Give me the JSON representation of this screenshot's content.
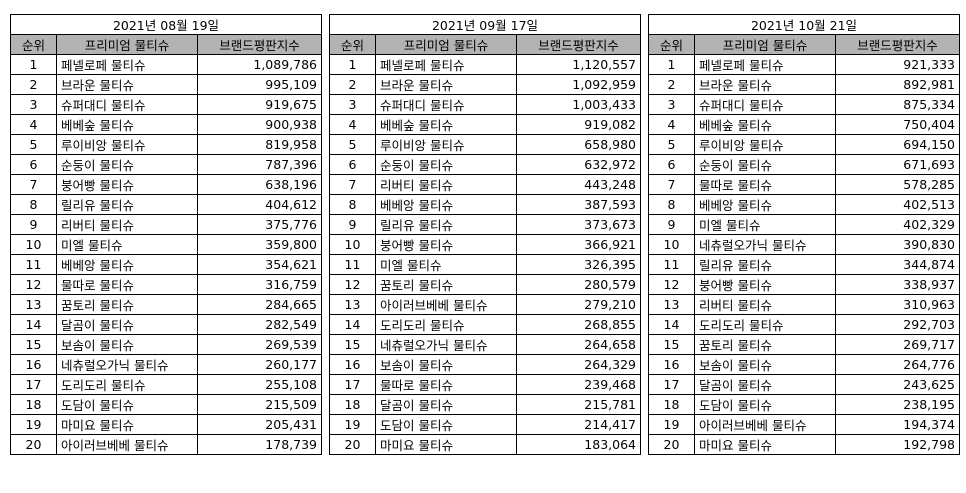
{
  "headers": {
    "rank": "순위",
    "name": "프리미엄 물티슈",
    "score": "브랜드평판지수"
  },
  "tables": [
    {
      "title": "2021년 08월 19일",
      "rows": [
        {
          "rank": "1",
          "name": "페넬로페 물티슈",
          "score": "1,089,786"
        },
        {
          "rank": "2",
          "name": "브라운 물티슈",
          "score": "995,109"
        },
        {
          "rank": "3",
          "name": "슈퍼대디 물티슈",
          "score": "919,675"
        },
        {
          "rank": "4",
          "name": "베베숲 물티슈",
          "score": "900,938"
        },
        {
          "rank": "5",
          "name": "루이비앙 물티슈",
          "score": "819,958"
        },
        {
          "rank": "6",
          "name": "순둥이 물티슈",
          "score": "787,396"
        },
        {
          "rank": "7",
          "name": "붕어빵 물티슈",
          "score": "638,196"
        },
        {
          "rank": "8",
          "name": "릴리유 물티슈",
          "score": "404,612"
        },
        {
          "rank": "9",
          "name": "리버티 물티슈",
          "score": "375,776"
        },
        {
          "rank": "10",
          "name": "미엘 물티슈",
          "score": "359,800"
        },
        {
          "rank": "11",
          "name": "베베앙 물티슈",
          "score": "354,621"
        },
        {
          "rank": "12",
          "name": "물따로 물티슈",
          "score": "316,759"
        },
        {
          "rank": "13",
          "name": "꿈토리 물티슈",
          "score": "284,665"
        },
        {
          "rank": "14",
          "name": "달곰이 물티슈",
          "score": "282,549"
        },
        {
          "rank": "15",
          "name": "보솜이 물티슈",
          "score": "269,539"
        },
        {
          "rank": "16",
          "name": "네츄럴오가닉 물티슈",
          "score": "260,177"
        },
        {
          "rank": "17",
          "name": "도리도리 물티슈",
          "score": "255,108"
        },
        {
          "rank": "18",
          "name": "도담이 물티슈",
          "score": "215,509"
        },
        {
          "rank": "19",
          "name": "마미요 물티슈",
          "score": "205,431"
        },
        {
          "rank": "20",
          "name": "아이러브베베 물티슈",
          "score": "178,739"
        }
      ]
    },
    {
      "title": "2021년 09월 17일",
      "rows": [
        {
          "rank": "1",
          "name": "페넬로페 물티슈",
          "score": "1,120,557"
        },
        {
          "rank": "2",
          "name": "브라운 물티슈",
          "score": "1,092,959"
        },
        {
          "rank": "3",
          "name": "슈퍼대디 물티슈",
          "score": "1,003,433"
        },
        {
          "rank": "4",
          "name": "베베숲 물티슈",
          "score": "919,082"
        },
        {
          "rank": "5",
          "name": "루이비앙 물티슈",
          "score": "658,980"
        },
        {
          "rank": "6",
          "name": "순둥이 물티슈",
          "score": "632,972"
        },
        {
          "rank": "7",
          "name": "리버티 물티슈",
          "score": "443,248"
        },
        {
          "rank": "8",
          "name": "베베앙 물티슈",
          "score": "387,593"
        },
        {
          "rank": "9",
          "name": "릴리유 물티슈",
          "score": "373,673"
        },
        {
          "rank": "10",
          "name": "붕어빵 물티슈",
          "score": "366,921"
        },
        {
          "rank": "11",
          "name": "미엘 물티슈",
          "score": "326,395"
        },
        {
          "rank": "12",
          "name": "꿈토리 물티슈",
          "score": "280,579"
        },
        {
          "rank": "13",
          "name": "아이러브베베 물티슈",
          "score": "279,210"
        },
        {
          "rank": "14",
          "name": "도리도리 물티슈",
          "score": "268,855"
        },
        {
          "rank": "15",
          "name": "네츄럴오가닉 물티슈",
          "score": "264,658"
        },
        {
          "rank": "16",
          "name": "보솜이 물티슈",
          "score": "264,329"
        },
        {
          "rank": "17",
          "name": "물따로 물티슈",
          "score": "239,468"
        },
        {
          "rank": "18",
          "name": "달곰이 물티슈",
          "score": "215,781"
        },
        {
          "rank": "19",
          "name": "도담이 물티슈",
          "score": "214,417"
        },
        {
          "rank": "20",
          "name": "마미요 물티슈",
          "score": "183,064"
        }
      ]
    },
    {
      "title": "2021년 10월 21일",
      "rows": [
        {
          "rank": "1",
          "name": "페넬로페 물티슈",
          "score": "921,333"
        },
        {
          "rank": "2",
          "name": "브라운 물티슈",
          "score": "892,981"
        },
        {
          "rank": "3",
          "name": "슈퍼대디 물티슈",
          "score": "875,334"
        },
        {
          "rank": "4",
          "name": "베베숲 물티슈",
          "score": "750,404"
        },
        {
          "rank": "5",
          "name": "루이비앙 물티슈",
          "score": "694,150"
        },
        {
          "rank": "6",
          "name": "순둥이 물티슈",
          "score": "671,693"
        },
        {
          "rank": "7",
          "name": "물따로 물티슈",
          "score": "578,285"
        },
        {
          "rank": "8",
          "name": "베베앙 물티슈",
          "score": "402,513"
        },
        {
          "rank": "9",
          "name": "미엘 물티슈",
          "score": "402,329"
        },
        {
          "rank": "10",
          "name": "네츄럴오가닉 물티슈",
          "score": "390,830"
        },
        {
          "rank": "11",
          "name": "릴리유 물티슈",
          "score": "344,874"
        },
        {
          "rank": "12",
          "name": "붕어빵 물티슈",
          "score": "338,937"
        },
        {
          "rank": "13",
          "name": "리버티 물티슈",
          "score": "310,963"
        },
        {
          "rank": "14",
          "name": "도리도리 물티슈",
          "score": "292,703"
        },
        {
          "rank": "15",
          "name": "꿈토리 물티슈",
          "score": "269,717"
        },
        {
          "rank": "16",
          "name": "보솜이 물티슈",
          "score": "264,776"
        },
        {
          "rank": "17",
          "name": "달곰이 물티슈",
          "score": "243,625"
        },
        {
          "rank": "18",
          "name": "도담이 물티슈",
          "score": "238,195"
        },
        {
          "rank": "19",
          "name": "아이러브베베 물티슈",
          "score": "194,374"
        },
        {
          "rank": "20",
          "name": "마미요 물티슈",
          "score": "192,798"
        }
      ]
    }
  ]
}
